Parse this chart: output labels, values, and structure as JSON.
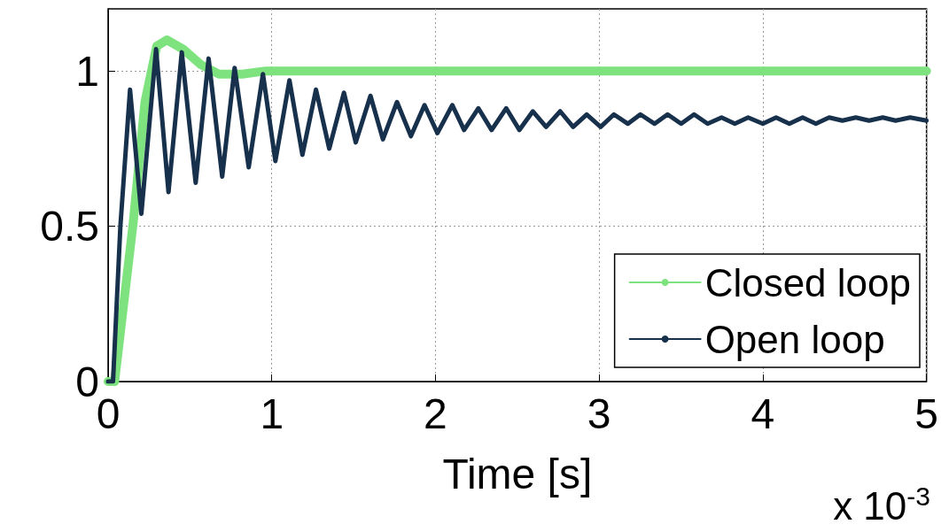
{
  "chart_data": {
    "type": "line",
    "xlabel": "Time [s]",
    "annotations": [
      "x 10$^{-3}$"
    ],
    "xlim": [
      0,
      5
    ],
    "xticks": [
      0,
      1,
      2,
      3,
      4,
      5
    ],
    "ylim": [
      0,
      1.2
    ],
    "yticks": [
      0,
      0.5,
      1
    ],
    "grid": true,
    "legend": "bottom right",
    "marker": "none",
    "line_style": "solid",
    "series": [
      {
        "name": "Closed loop",
        "color": "#7ee37e",
        "x": [
          0,
          0.04,
          0.153,
          0.225,
          0.297,
          0.36,
          0.459,
          0.568,
          0.676,
          0.82,
          0.964,
          2,
          3,
          4,
          5
        ],
        "values": [
          0,
          0,
          0.51,
          0.9,
          1.08,
          1.1,
          1.07,
          1.02,
          0.99,
          0.99,
          1.0,
          1.0,
          1.0,
          1.0,
          1.0
        ]
      },
      {
        "name": "Open loop",
        "color": "#17314d",
        "x": [
          0,
          0.03,
          0.075,
          0.134,
          0.203,
          0.293,
          0.369,
          0.45,
          0.535,
          0.614,
          0.697,
          0.773,
          0.859,
          0.946,
          1.022,
          1.108,
          1.187,
          1.27,
          1.351,
          1.441,
          1.513,
          1.603,
          1.679,
          1.765,
          1.85,
          1.933,
          2.012,
          2.103,
          2.175,
          2.262,
          2.343,
          2.432,
          2.513,
          2.595,
          2.676,
          2.762,
          2.841,
          2.924,
          3.009,
          3.09,
          3.176,
          3.252,
          3.339,
          3.418,
          3.501,
          3.58,
          3.663,
          3.748,
          3.829,
          3.91,
          4.0,
          4.081,
          4.162,
          4.243,
          4.324,
          4.405,
          4.486,
          4.568,
          4.649,
          4.733,
          4.811,
          4.9,
          5.0
        ],
        "values": [
          0,
          0,
          0.5,
          0.94,
          0.54,
          1.07,
          0.61,
          1.06,
          0.64,
          1.04,
          0.66,
          1.01,
          0.69,
          0.99,
          0.71,
          0.97,
          0.73,
          0.94,
          0.75,
          0.93,
          0.77,
          0.92,
          0.78,
          0.9,
          0.79,
          0.89,
          0.8,
          0.89,
          0.81,
          0.88,
          0.81,
          0.88,
          0.81,
          0.87,
          0.82,
          0.87,
          0.82,
          0.86,
          0.82,
          0.86,
          0.83,
          0.86,
          0.83,
          0.86,
          0.83,
          0.86,
          0.83,
          0.85,
          0.83,
          0.85,
          0.83,
          0.85,
          0.83,
          0.85,
          0.83,
          0.85,
          0.84,
          0.85,
          0.84,
          0.85,
          0.84,
          0.85,
          0.84
        ]
      }
    ]
  }
}
